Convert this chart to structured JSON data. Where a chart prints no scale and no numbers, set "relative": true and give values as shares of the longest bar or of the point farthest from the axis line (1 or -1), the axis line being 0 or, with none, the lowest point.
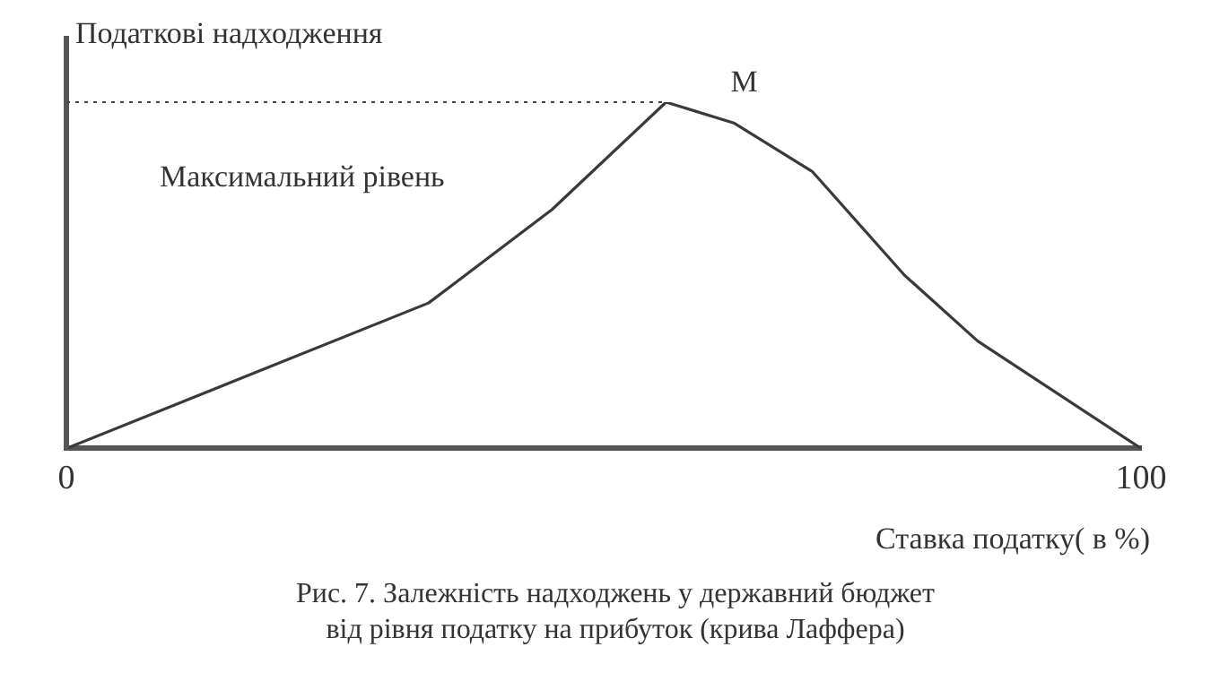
{
  "chart_data": {
    "type": "line",
    "ylabel": "Податкові надходження",
    "xlabel": "Ставка податку( в %)",
    "relative": true,
    "color": "#3a3a3a",
    "grid": false,
    "legend": false,
    "marker": "none",
    "line_style": "solid",
    "x": [
      0,
      33.7,
      45.2,
      55.8,
      62.1,
      69.4,
      78.0,
      84.8,
      100
    ],
    "values": [
      0,
      0.42,
      0.69,
      1,
      0.94,
      0.8,
      0.5,
      0.31,
      0
    ],
    "xlim": [
      0,
      100
    ],
    "xticks": [
      0,
      100
    ],
    "ref_lines": [
      {
        "axis": "y",
        "value": 1,
        "label": "Максимальний рівень",
        "line_style": "dotted"
      }
    ],
    "annotations": [
      {
        "text": "M",
        "x": 55.8,
        "y": 1
      },
      "Рис. 7. Залежність надходжень у державний бюджет\nвід рівня податку на прибуток (крива Лаффера)"
    ]
  }
}
